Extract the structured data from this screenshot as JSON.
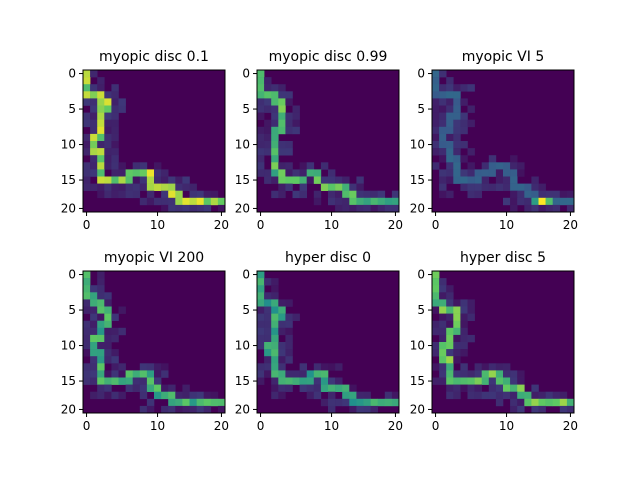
{
  "chart_data": {
    "type": "heatmap",
    "layout": "2x3 grid",
    "colormap": "viridis",
    "xlim": [
      0,
      20
    ],
    "ylim": [
      20,
      0
    ],
    "xticks": [
      "0",
      "10",
      "20"
    ],
    "yticks": [
      "0",
      "5",
      "10",
      "15",
      "20"
    ],
    "grid": false,
    "panels": [
      {
        "title": "myopic disc 0.1",
        "path_intensity": 0.85,
        "path": [
          [
            0,
            0
          ],
          [
            0,
            1
          ],
          [
            0,
            2
          ],
          [
            0,
            3
          ],
          [
            1,
            3
          ],
          [
            2,
            3
          ],
          [
            2,
            4
          ],
          [
            3,
            4
          ],
          [
            3,
            5
          ],
          [
            2,
            5
          ],
          [
            2,
            6
          ],
          [
            2,
            7
          ],
          [
            2,
            8
          ],
          [
            2,
            9
          ],
          [
            1,
            9
          ],
          [
            1,
            10
          ],
          [
            1,
            11
          ],
          [
            2,
            11
          ],
          [
            2,
            12
          ],
          [
            2,
            13
          ],
          [
            2,
            14
          ],
          [
            2,
            15
          ],
          [
            3,
            15
          ],
          [
            4,
            15
          ],
          [
            5,
            15
          ],
          [
            6,
            15
          ],
          [
            6,
            14
          ],
          [
            7,
            14
          ],
          [
            8,
            14
          ],
          [
            9,
            14
          ],
          [
            9,
            15
          ],
          [
            9,
            16
          ],
          [
            10,
            16
          ],
          [
            11,
            16
          ],
          [
            12,
            16
          ],
          [
            12,
            17
          ],
          [
            13,
            17
          ],
          [
            13,
            18
          ],
          [
            14,
            18
          ],
          [
            15,
            18
          ],
          [
            16,
            18
          ],
          [
            17,
            18
          ],
          [
            18,
            18
          ],
          [
            19,
            18
          ]
        ]
      },
      {
        "title": "myopic disc 0.99",
        "path_intensity": 0.7,
        "path": [
          [
            0,
            0
          ],
          [
            0,
            1
          ],
          [
            0,
            2
          ],
          [
            0,
            3
          ],
          [
            1,
            3
          ],
          [
            2,
            3
          ],
          [
            2,
            4
          ],
          [
            3,
            4
          ],
          [
            3,
            5
          ],
          [
            3,
            6
          ],
          [
            3,
            7
          ],
          [
            3,
            8
          ],
          [
            2,
            8
          ],
          [
            2,
            9
          ],
          [
            2,
            10
          ],
          [
            2,
            11
          ],
          [
            2,
            12
          ],
          [
            2,
            13
          ],
          [
            2,
            14
          ],
          [
            3,
            14
          ],
          [
            3,
            15
          ],
          [
            4,
            15
          ],
          [
            5,
            15
          ],
          [
            6,
            15
          ],
          [
            7,
            14
          ],
          [
            8,
            14
          ],
          [
            8,
            15
          ],
          [
            9,
            16
          ],
          [
            10,
            16
          ],
          [
            11,
            16
          ],
          [
            12,
            16
          ],
          [
            12,
            17
          ],
          [
            13,
            17
          ],
          [
            13,
            18
          ],
          [
            14,
            18
          ],
          [
            15,
            18
          ],
          [
            16,
            18
          ],
          [
            17,
            18
          ],
          [
            18,
            18
          ],
          [
            19,
            18
          ]
        ]
      },
      {
        "title": "myopic VI 5",
        "path_intensity": 0.3,
        "path": [
          [
            0,
            0
          ],
          [
            0,
            1
          ],
          [
            0,
            2
          ],
          [
            0,
            3
          ],
          [
            1,
            3
          ],
          [
            2,
            3
          ],
          [
            3,
            3
          ],
          [
            3,
            4
          ],
          [
            3,
            5
          ],
          [
            3,
            6
          ],
          [
            2,
            6
          ],
          [
            2,
            7
          ],
          [
            2,
            8
          ],
          [
            1,
            8
          ],
          [
            1,
            9
          ],
          [
            1,
            10
          ],
          [
            2,
            10
          ],
          [
            2,
            11
          ],
          [
            2,
            12
          ],
          [
            3,
            12
          ],
          [
            3,
            13
          ],
          [
            3,
            14
          ],
          [
            3,
            15
          ],
          [
            4,
            15
          ],
          [
            5,
            15
          ],
          [
            6,
            15
          ],
          [
            6,
            14
          ],
          [
            7,
            14
          ],
          [
            8,
            14
          ],
          [
            8,
            13
          ],
          [
            9,
            13
          ],
          [
            10,
            13
          ],
          [
            10,
            14
          ],
          [
            11,
            14
          ],
          [
            11,
            15
          ],
          [
            11,
            16
          ],
          [
            12,
            16
          ],
          [
            13,
            16
          ],
          [
            13,
            17
          ],
          [
            14,
            17
          ],
          [
            14,
            18
          ],
          [
            15,
            18
          ],
          [
            16,
            18
          ],
          [
            17,
            18
          ],
          [
            18,
            18
          ],
          [
            19,
            18
          ]
        ]
      },
      {
        "title": "myopic VI 200",
        "path_intensity": 0.65,
        "path": [
          [
            0,
            0
          ],
          [
            0,
            1
          ],
          [
            0,
            2
          ],
          [
            0,
            3
          ],
          [
            1,
            3
          ],
          [
            1,
            4
          ],
          [
            2,
            4
          ],
          [
            2,
            5
          ],
          [
            3,
            5
          ],
          [
            3,
            6
          ],
          [
            3,
            7
          ],
          [
            2,
            7
          ],
          [
            2,
            8
          ],
          [
            2,
            9
          ],
          [
            1,
            9
          ],
          [
            1,
            10
          ],
          [
            1,
            11
          ],
          [
            2,
            11
          ],
          [
            2,
            12
          ],
          [
            2,
            13
          ],
          [
            2,
            14
          ],
          [
            2,
            15
          ],
          [
            3,
            15
          ],
          [
            4,
            15
          ],
          [
            5,
            15
          ],
          [
            6,
            15
          ],
          [
            6,
            14
          ],
          [
            7,
            14
          ],
          [
            8,
            14
          ],
          [
            9,
            14
          ],
          [
            9,
            15
          ],
          [
            9,
            16
          ],
          [
            10,
            16
          ],
          [
            10,
            17
          ],
          [
            11,
            17
          ],
          [
            12,
            17
          ],
          [
            12,
            18
          ],
          [
            13,
            18
          ],
          [
            14,
            18
          ],
          [
            15,
            18
          ],
          [
            16,
            18
          ],
          [
            17,
            18
          ],
          [
            18,
            18
          ],
          [
            19,
            18
          ]
        ]
      },
      {
        "title": "hyper disc 0",
        "path_intensity": 0.6,
        "path": [
          [
            0,
            0
          ],
          [
            0,
            1
          ],
          [
            0,
            2
          ],
          [
            0,
            3
          ],
          [
            0,
            4
          ],
          [
            1,
            4
          ],
          [
            2,
            4
          ],
          [
            2,
            5
          ],
          [
            3,
            5
          ],
          [
            3,
            6
          ],
          [
            2,
            6
          ],
          [
            2,
            7
          ],
          [
            2,
            8
          ],
          [
            2,
            9
          ],
          [
            2,
            10
          ],
          [
            1,
            10
          ],
          [
            1,
            11
          ],
          [
            2,
            11
          ],
          [
            2,
            12
          ],
          [
            2,
            13
          ],
          [
            2,
            14
          ],
          [
            3,
            14
          ],
          [
            3,
            15
          ],
          [
            4,
            15
          ],
          [
            5,
            15
          ],
          [
            6,
            15
          ],
          [
            7,
            15
          ],
          [
            7,
            14
          ],
          [
            8,
            14
          ],
          [
            9,
            14
          ],
          [
            9,
            15
          ],
          [
            9,
            16
          ],
          [
            10,
            16
          ],
          [
            11,
            16
          ],
          [
            12,
            16
          ],
          [
            12,
            17
          ],
          [
            13,
            17
          ],
          [
            13,
            18
          ],
          [
            14,
            18
          ],
          [
            15,
            18
          ],
          [
            16,
            18
          ],
          [
            17,
            18
          ],
          [
            18,
            18
          ],
          [
            19,
            18
          ]
        ]
      },
      {
        "title": "hyper disc 5",
        "path_intensity": 0.75,
        "path": [
          [
            0,
            0
          ],
          [
            0,
            1
          ],
          [
            0,
            2
          ],
          [
            0,
            3
          ],
          [
            0,
            4
          ],
          [
            1,
            4
          ],
          [
            1,
            5
          ],
          [
            2,
            5
          ],
          [
            3,
            5
          ],
          [
            3,
            6
          ],
          [
            3,
            7
          ],
          [
            3,
            8
          ],
          [
            2,
            8
          ],
          [
            2,
            9
          ],
          [
            2,
            10
          ],
          [
            1,
            10
          ],
          [
            1,
            11
          ],
          [
            1,
            12
          ],
          [
            2,
            12
          ],
          [
            2,
            13
          ],
          [
            2,
            14
          ],
          [
            2,
            15
          ],
          [
            3,
            15
          ],
          [
            4,
            15
          ],
          [
            5,
            15
          ],
          [
            6,
            15
          ],
          [
            7,
            15
          ],
          [
            7,
            14
          ],
          [
            8,
            14
          ],
          [
            9,
            14
          ],
          [
            9,
            15
          ],
          [
            10,
            15
          ],
          [
            10,
            16
          ],
          [
            11,
            16
          ],
          [
            12,
            16
          ],
          [
            12,
            17
          ],
          [
            13,
            17
          ],
          [
            13,
            18
          ],
          [
            14,
            18
          ],
          [
            15,
            18
          ],
          [
            16,
            18
          ],
          [
            17,
            18
          ],
          [
            18,
            18
          ],
          [
            19,
            18
          ]
        ]
      }
    ]
  }
}
